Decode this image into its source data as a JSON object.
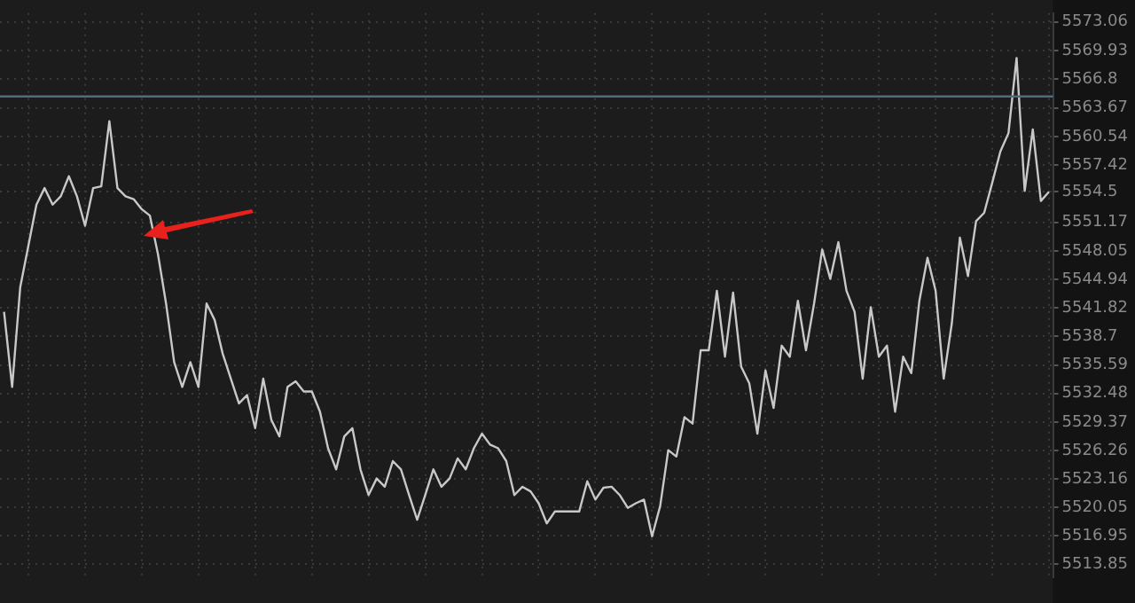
{
  "chart_data": {
    "type": "line",
    "categories": [
      null,
      null,
      null,
      null,
      null,
      null,
      null,
      null,
      null,
      null,
      null,
      null,
      null,
      null,
      null,
      null,
      null,
      null,
      null,
      null,
      null,
      null,
      null,
      null,
      null,
      null,
      null,
      null,
      null,
      null,
      null,
      null,
      null,
      null,
      null,
      null,
      null,
      null,
      null,
      null,
      null,
      null,
      null,
      null,
      null,
      null,
      null,
      null,
      null,
      null,
      null,
      null,
      null,
      null,
      null,
      null,
      null,
      null,
      null,
      null,
      null,
      null,
      null,
      null,
      null,
      null,
      null,
      null,
      null,
      null,
      null,
      null,
      null,
      null,
      null,
      null,
      null,
      null,
      null,
      null,
      null,
      null,
      null,
      null,
      null,
      null,
      null,
      null,
      null,
      null,
      null,
      null,
      null,
      null,
      null,
      null,
      null,
      null,
      null,
      null,
      null,
      null,
      null,
      null,
      null,
      null,
      null,
      null,
      null,
      null,
      null,
      null,
      null,
      null,
      null,
      null,
      null,
      null,
      null,
      null,
      null,
      null,
      null,
      null,
      null,
      null,
      null,
      null,
      null,
      null
    ],
    "series": [
      {
        "color": "#c8c8c8",
        "values": [
          5541.4,
          5533.2,
          5544.1,
          5548.6,
          5553.1,
          5554.9,
          5553.1,
          5554.0,
          5556.2,
          5554.0,
          5550.8,
          5554.9,
          5555.1,
          5562.2,
          5554.9,
          5554.0,
          5553.7,
          5552.6,
          5551.9,
          5547.7,
          5542.3,
          5535.9,
          5533.2,
          5535.9,
          5533.2,
          5542.3,
          5540.5,
          5536.8,
          5534.1,
          5531.4,
          5532.3,
          5528.7,
          5534.1,
          5529.6,
          5527.8,
          5533.2,
          5533.8,
          5532.7,
          5532.7,
          5530.5,
          5526.5,
          5524.2,
          5527.8,
          5528.7,
          5524.2,
          5521.4,
          5523.2,
          5522.3,
          5525.1,
          5524.2,
          5521.4,
          5518.7,
          5521.4,
          5524.2,
          5522.3,
          5523.2,
          5525.4,
          5524.2,
          5526.5,
          5528.1,
          5526.9,
          5526.5,
          5525.1,
          5521.4,
          5522.3,
          5521.8,
          5520.5,
          5518.3,
          5519.6,
          5519.6,
          5519.6,
          5519.6,
          5522.9,
          5520.9,
          5522.2,
          5522.3,
          5521.4,
          5520.0,
          5520.5,
          5520.9,
          5516.9,
          5520.2,
          5526.3,
          5525.6,
          5529.9,
          5529.2,
          5537.2,
          5537.2,
          5543.7,
          5536.5,
          5543.5,
          5535.4,
          5533.6,
          5528.1,
          5535.0,
          5530.9,
          5537.7,
          5536.5,
          5542.6,
          5537.2,
          5542.3,
          5548.2,
          5545.0,
          5549.0,
          5543.7,
          5541.4,
          5534.1,
          5541.9,
          5536.5,
          5537.7,
          5530.5,
          5536.5,
          5534.7,
          5542.6,
          5547.3,
          5543.7,
          5534.1,
          5540.1,
          5549.5,
          5545.3,
          5551.3,
          5552.2,
          5555.5,
          5558.9,
          5560.9,
          5569.1,
          5554.6,
          5561.3,
          5553.5,
          5554.5
        ]
      }
    ],
    "ylim": [
      5512.4,
      5574.0
    ],
    "yticks": [
      5513.85,
      5516.95,
      5520.05,
      5523.16,
      5526.26,
      5529.37,
      5532.48,
      5535.59,
      5538.7,
      5541.82,
      5544.94,
      5548.05,
      5551.17,
      5554.5,
      5557.42,
      5560.54,
      5563.67,
      5566.8,
      5569.93,
      5573.06
    ],
    "ref_lines": [
      {
        "axis": "y",
        "value": 5564.9,
        "color": "#4f6b80"
      }
    ],
    "grid": true,
    "legend": false,
    "marker": "none",
    "line_style": "solid"
  }
}
